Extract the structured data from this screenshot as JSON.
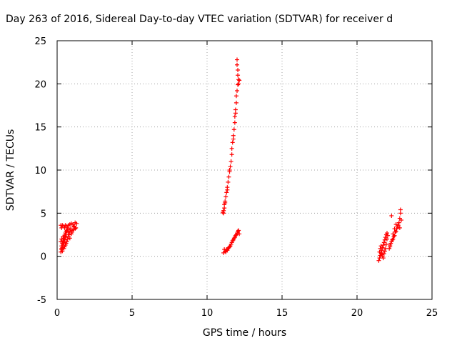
{
  "chart_data": {
    "type": "scatter",
    "title": "Day 263 of 2016, Sidereal Day-to-day VTEC variation (SDTVAR) for receiver d",
    "xlabel": "GPS time / hours",
    "ylabel": "SDTVAR / TECUs",
    "xlim": [
      0,
      25
    ],
    "ylim": [
      -5,
      25
    ],
    "xticks": [
      "0",
      "5",
      "10",
      "15",
      "20",
      "25"
    ],
    "yticks": [
      "-5",
      "0",
      "5",
      "10",
      "15",
      "20",
      "25"
    ],
    "grid": true,
    "marker": "+",
    "marker_color": "#ff0000",
    "series": [
      {
        "points": [
          [
            0.25,
            3.6
          ],
          [
            0.35,
            3.6
          ],
          [
            0.45,
            3.5
          ],
          [
            0.55,
            3.6
          ],
          [
            0.65,
            3.5
          ],
          [
            0.75,
            3.6
          ],
          [
            0.85,
            3.7
          ],
          [
            0.95,
            3.8
          ],
          [
            1.05,
            3.7
          ],
          [
            1.15,
            3.5
          ],
          [
            1.25,
            3.3
          ],
          [
            1.3,
            3.8
          ],
          [
            1.2,
            3.9
          ],
          [
            1.1,
            3.4
          ],
          [
            0.3,
            3.3
          ],
          [
            0.5,
            3.3
          ],
          [
            0.7,
            3.3
          ],
          [
            0.9,
            3.2
          ],
          [
            1.0,
            3.0
          ],
          [
            1.1,
            3.1
          ],
          [
            1.2,
            3.2
          ],
          [
            0.25,
            0.5
          ],
          [
            0.3,
            0.8
          ],
          [
            0.3,
            1.2
          ],
          [
            0.35,
            1.5
          ],
          [
            0.4,
            1.8
          ],
          [
            0.45,
            2.1
          ],
          [
            0.5,
            2.4
          ],
          [
            0.55,
            2.7
          ],
          [
            0.6,
            2.9
          ],
          [
            0.65,
            3.0
          ],
          [
            0.7,
            3.1
          ],
          [
            0.75,
            2.8
          ],
          [
            0.8,
            2.5
          ],
          [
            0.85,
            2.9
          ],
          [
            0.3,
            0.9
          ],
          [
            0.35,
            1.0
          ],
          [
            0.4,
            1.3
          ],
          [
            0.45,
            1.6
          ],
          [
            0.5,
            1.9
          ],
          [
            0.55,
            2.2
          ],
          [
            0.6,
            2.5
          ],
          [
            0.35,
            0.6
          ],
          [
            0.45,
            0.9
          ],
          [
            0.55,
            1.3
          ],
          [
            0.65,
            1.7
          ],
          [
            0.7,
            2.0
          ],
          [
            0.4,
            2.3
          ],
          [
            0.3,
            2.0
          ],
          [
            0.25,
            1.7
          ],
          [
            0.5,
            1.1
          ],
          [
            0.6,
            1.5
          ],
          [
            0.75,
            2.3
          ],
          [
            0.85,
            2.1
          ],
          [
            0.95,
            2.6
          ],
          [
            1.0,
            2.8
          ],
          [
            11.05,
            5.1
          ],
          [
            11.1,
            5.3
          ],
          [
            11.15,
            5.6
          ],
          [
            11.15,
            6.0
          ],
          [
            11.2,
            6.4
          ],
          [
            11.25,
            6.9
          ],
          [
            11.3,
            7.4
          ],
          [
            11.35,
            8.0
          ],
          [
            11.4,
            8.6
          ],
          [
            11.45,
            9.2
          ],
          [
            11.5,
            9.8
          ],
          [
            11.55,
            10.4
          ],
          [
            11.6,
            11.0
          ],
          [
            11.65,
            11.8
          ],
          [
            11.65,
            12.5
          ],
          [
            11.7,
            13.2
          ],
          [
            11.75,
            14.0
          ],
          [
            11.8,
            14.7
          ],
          [
            11.85,
            15.5
          ],
          [
            11.85,
            16.2
          ],
          [
            11.9,
            17.0
          ],
          [
            11.95,
            17.8
          ],
          [
            11.95,
            18.6
          ],
          [
            12.0,
            19.2
          ],
          [
            12.05,
            19.9
          ],
          [
            12.1,
            20.5
          ],
          [
            12.05,
            21.0
          ],
          [
            12.05,
            21.6
          ],
          [
            12.0,
            22.2
          ],
          [
            12.0,
            22.8
          ],
          [
            12.1,
            20.0
          ],
          [
            12.15,
            20.4
          ],
          [
            11.9,
            16.6
          ],
          [
            11.75,
            13.6
          ],
          [
            11.5,
            10.0
          ],
          [
            11.35,
            7.7
          ],
          [
            11.2,
            6.2
          ],
          [
            11.1,
            5.0
          ],
          [
            11.1,
            0.4
          ],
          [
            11.2,
            0.6
          ],
          [
            11.3,
            0.8
          ],
          [
            11.4,
            0.9
          ],
          [
            11.5,
            1.1
          ],
          [
            11.6,
            1.4
          ],
          [
            11.7,
            1.8
          ],
          [
            11.8,
            2.1
          ],
          [
            11.9,
            2.4
          ],
          [
            12.0,
            2.7
          ],
          [
            12.1,
            3.0
          ],
          [
            12.15,
            2.6
          ],
          [
            11.25,
            0.5
          ],
          [
            11.45,
            1.0
          ],
          [
            11.65,
            1.6
          ],
          [
            11.85,
            2.2
          ],
          [
            12.05,
            2.9
          ],
          [
            11.15,
            0.8
          ],
          [
            11.35,
            0.7
          ],
          [
            11.55,
            1.2
          ],
          [
            11.75,
            1.9
          ],
          [
            11.95,
            2.5
          ],
          [
            21.45,
            -0.5
          ],
          [
            21.5,
            -0.2
          ],
          [
            21.55,
            0.1
          ],
          [
            21.6,
            0.4
          ],
          [
            21.65,
            0.7
          ],
          [
            21.7,
            1.0
          ],
          [
            21.75,
            1.3
          ],
          [
            21.8,
            1.6
          ],
          [
            21.85,
            1.9
          ],
          [
            21.9,
            2.2
          ],
          [
            21.95,
            2.5
          ],
          [
            22.0,
            2.7
          ],
          [
            21.5,
            0.5
          ],
          [
            21.55,
            0.9
          ],
          [
            21.6,
            1.2
          ],
          [
            21.65,
            0.2
          ],
          [
            21.7,
            0.0
          ],
          [
            21.75,
            -0.2
          ],
          [
            21.8,
            0.3
          ],
          [
            21.85,
            0.6
          ],
          [
            21.9,
            0.9
          ],
          [
            21.95,
            1.4
          ],
          [
            22.0,
            2.0
          ],
          [
            22.05,
            2.4
          ],
          [
            22.15,
            0.9
          ],
          [
            22.2,
            1.3
          ],
          [
            22.3,
            1.7
          ],
          [
            22.4,
            2.0
          ],
          [
            22.5,
            2.4
          ],
          [
            22.6,
            2.9
          ],
          [
            22.7,
            3.4
          ],
          [
            22.8,
            3.9
          ],
          [
            22.85,
            4.4
          ],
          [
            22.9,
            5.0
          ],
          [
            22.9,
            5.4
          ],
          [
            22.95,
            4.2
          ],
          [
            22.25,
            1.5
          ],
          [
            22.35,
            1.9
          ],
          [
            22.45,
            2.3
          ],
          [
            22.55,
            2.8
          ],
          [
            22.65,
            3.2
          ],
          [
            22.75,
            3.6
          ],
          [
            22.85,
            3.3
          ],
          [
            22.3,
            4.7
          ],
          [
            22.5,
            3.2
          ],
          [
            22.6,
            3.7
          ],
          [
            22.2,
            1.1
          ],
          [
            22.4,
            2.6
          ]
        ]
      }
    ]
  }
}
